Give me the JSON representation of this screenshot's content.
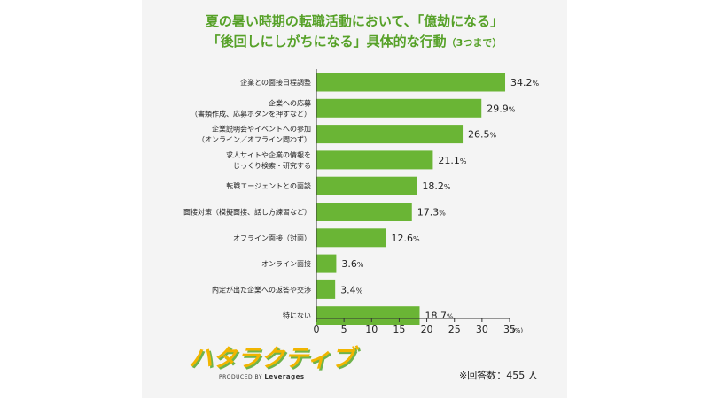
{
  "title_line1": "夏の暑い時期の転職活動において、「億劫になる」",
  "title_line2": "「後回しにしがちになる」具体的な行動",
  "title_suffix": "（3つまで）",
  "logo_text": "ハタラクティブ",
  "logo_produced_by": "PRODUCED BY",
  "logo_company": "Leverages",
  "respondents_note": "※回答数：455 人",
  "chart_data": {
    "type": "bar",
    "orientation": "horizontal",
    "bar_color": "#6ab535",
    "categories": [
      [
        "企業との面接日程調整"
      ],
      [
        "企業への応募",
        "（書類作成、応募ボタンを押すなど）"
      ],
      [
        "企業説明会やイベントへの参加",
        "（オンライン／オフライン問わず）"
      ],
      [
        "求人サイトや企業の情報を",
        "じっくり検索・研究する"
      ],
      [
        "転職エージェントとの面談"
      ],
      [
        "面接対策（模擬面接、話し方練習など）"
      ],
      [
        "オフライン面接（対面）"
      ],
      [
        "オンライン面接"
      ],
      [
        "内定が出た企業への返答や交渉"
      ],
      [
        "特にない"
      ]
    ],
    "values": [
      34.2,
      29.9,
      26.5,
      21.1,
      18.2,
      17.3,
      12.6,
      3.6,
      3.4,
      18.7
    ],
    "value_suffix": "%",
    "xlim": [
      0,
      35
    ],
    "xticks": [
      0,
      5,
      10,
      15,
      20,
      25,
      30,
      35
    ],
    "x_unit": "(%)"
  }
}
